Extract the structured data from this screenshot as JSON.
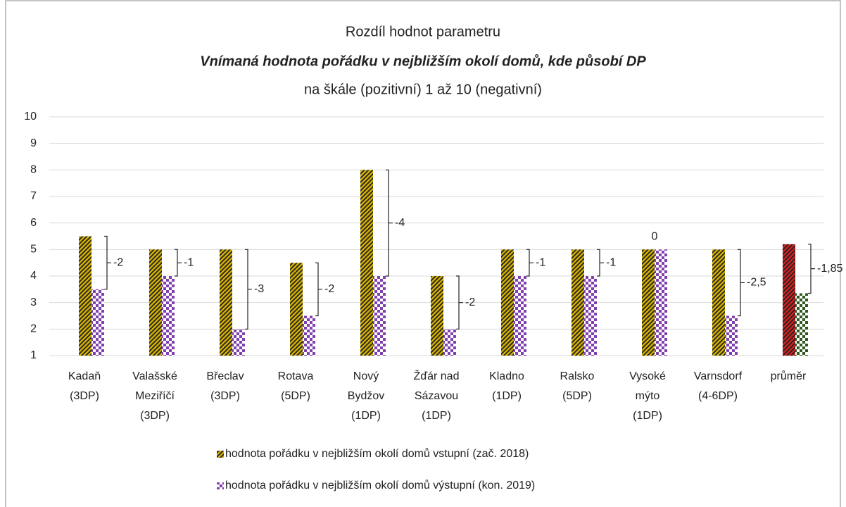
{
  "chart_data": {
    "type": "bar",
    "title": "Rozdíl hodnot parametru",
    "subtitle": "Vnímaná hodnota pořádku v nejbližším okolí domů, kde působí DP",
    "subtitle2": "na škále (pozitivní) 1 až 10 (negativní)",
    "categories": [
      [
        "Kadaň",
        "(3DP)"
      ],
      [
        "Valašské",
        "Meziříčí",
        "(3DP)"
      ],
      [
        "Břeclav",
        "(3DP)"
      ],
      [
        "Rotava",
        "(5DP)"
      ],
      [
        "Nový",
        "Bydžov",
        "(1DP)"
      ],
      [
        "Žďár nad",
        "Sázavou",
        "(1DP)"
      ],
      [
        "Kladno",
        "(1DP)"
      ],
      [
        "Ralsko",
        "(5DP)"
      ],
      [
        "Vysoké",
        "mýto",
        "(1DP)"
      ],
      [
        "Varnsdorf",
        "(4-6DP)"
      ],
      [
        "průměr"
      ]
    ],
    "series": [
      {
        "name": "hodnota pořádku v nejbližším okolí domů vstupní (zač. 2018)",
        "pattern": "stripes",
        "colors": [
          "#d4b000",
          "#d4b000",
          "#d4b000",
          "#d4b000",
          "#d4b000",
          "#d4b000",
          "#d4b000",
          "#d4b000",
          "#d4b000",
          "#d4b000",
          "#d42020"
        ],
        "values": [
          5.5,
          5,
          5,
          4.5,
          8,
          4,
          5,
          5,
          5,
          5,
          5.2
        ]
      },
      {
        "name": "hodnota pořádku v nejbližším okolí domů výstupní (kon. 2019)",
        "pattern": "checker",
        "colors": [
          "#8040b0",
          "#8040b0",
          "#8040b0",
          "#8040b0",
          "#8040b0",
          "#8040b0",
          "#8040b0",
          "#8040b0",
          "#8040b0",
          "#8040b0",
          "#2e5a1e"
        ],
        "values": [
          3.5,
          4,
          2,
          2.5,
          4,
          2,
          4,
          4,
          5,
          2.5,
          3.35
        ]
      }
    ],
    "annotations": [
      "-2",
      "-1",
      "-3",
      "-2",
      "-4",
      "-2",
      "-1",
      "-1",
      "0",
      "-2,5",
      "-1,85"
    ],
    "ylim": [
      1,
      10
    ],
    "yticks": [
      1,
      2,
      3,
      4,
      5,
      6,
      7,
      8,
      9,
      10
    ],
    "grid": true
  }
}
